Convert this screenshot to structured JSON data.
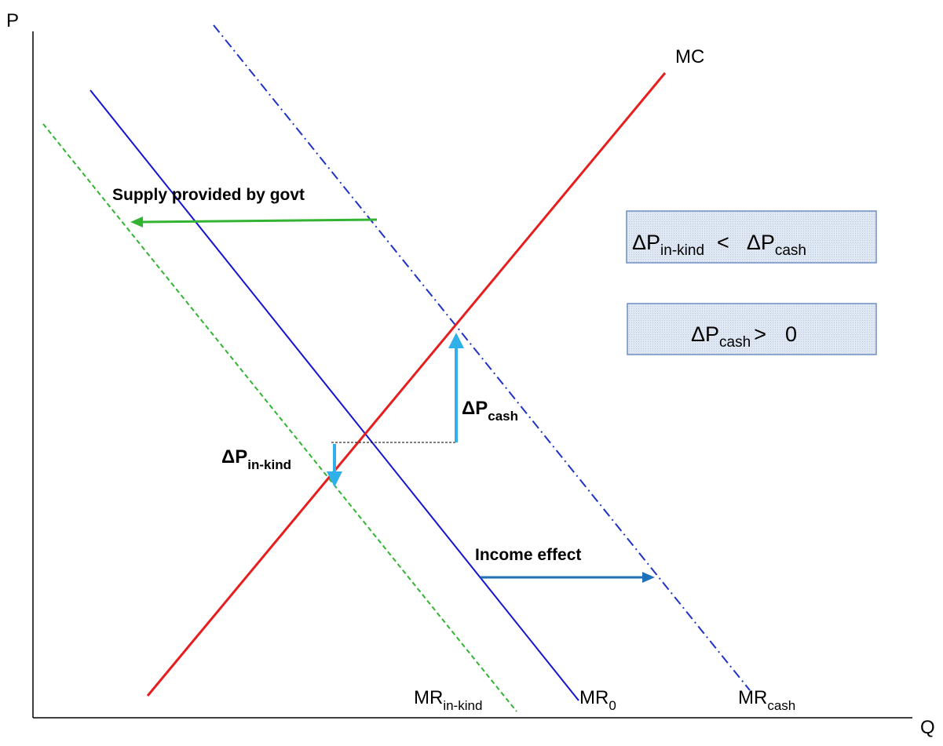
{
  "axes": {
    "y_label": "P",
    "x_label": "Q"
  },
  "curves": {
    "mc": {
      "label": "MC",
      "color": "#e61e1e"
    },
    "mr0": {
      "label": "MR",
      "sub": "0",
      "color": "#1414d2"
    },
    "mr_cash": {
      "label": "MR",
      "sub": "cash",
      "color": "#1e32c8"
    },
    "mr_inkind": {
      "label": "MR",
      "sub": "in-kind",
      "color": "#32b432"
    }
  },
  "annotations": {
    "supply_govt": {
      "text": "Supply provided by govt",
      "color": "#32b432"
    },
    "income_effect": {
      "text": "Income effect",
      "color": "#2070b8"
    },
    "dp_cash": {
      "main": "ΔP",
      "sub": "cash",
      "color": "#30b0e8"
    },
    "dp_inkind": {
      "main": "ΔP",
      "sub": "in-kind",
      "color": "#30b0e8"
    }
  },
  "boxes": {
    "comparison": {
      "left_main": "ΔP",
      "left_sub": "in-kind",
      "operator": "<",
      "right_main": "ΔP",
      "right_sub": "cash"
    },
    "positive": {
      "left_main": "ΔP",
      "left_sub": "cash",
      "operator": ">",
      "value": "0"
    },
    "fill": "#dde6f3",
    "border": "#6e8fc0"
  }
}
